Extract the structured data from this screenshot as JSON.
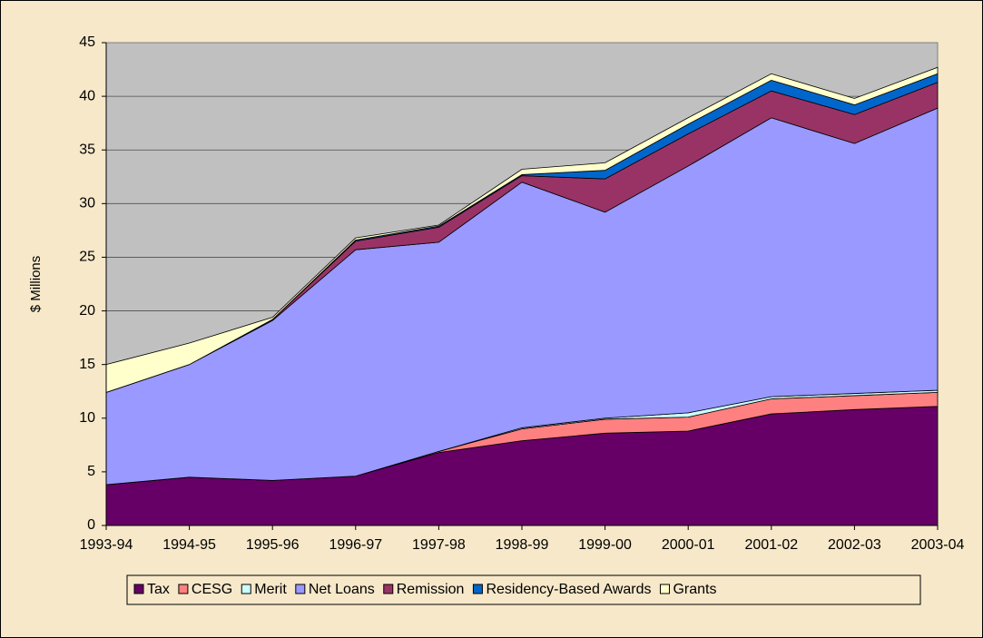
{
  "chart_data": {
    "type": "stacked_area",
    "y_label": "$ Millions",
    "categories": [
      "1993-94",
      "1994-95",
      "1995-96",
      "1996-97",
      "1997-98",
      "1998-99",
      "1999-00",
      "2000-01",
      "2001-02",
      "2002-03",
      "2003-04"
    ],
    "series": [
      {
        "name": "Tax",
        "color": "#660066",
        "values": [
          3.8,
          4.5,
          4.2,
          4.6,
          6.8,
          7.9,
          8.6,
          8.8,
          10.4,
          10.8,
          11.1
        ]
      },
      {
        "name": "CESG",
        "color": "#ff8080",
        "values": [
          0,
          0,
          0,
          0,
          0.1,
          1.1,
          1.3,
          1.3,
          1.4,
          1.3,
          1.3
        ]
      },
      {
        "name": "Merit",
        "color": "#ccffff",
        "values": [
          0,
          0,
          0,
          0,
          0,
          0.1,
          0.1,
          0.4,
          0.2,
          0.2,
          0.2
        ]
      },
      {
        "name": "Net Loans",
        "color": "#9999ff",
        "values": [
          8.6,
          10.5,
          14.9,
          21.1,
          19.5,
          22.9,
          19.2,
          23.0,
          26.0,
          23.3,
          26.3
        ]
      },
      {
        "name": "Remission",
        "color": "#993366",
        "values": [
          0,
          0,
          0.1,
          0.8,
          1.4,
          0.6,
          3.1,
          3.0,
          2.5,
          2.7,
          2.4
        ]
      },
      {
        "name": "Residency-Based Awards",
        "color": "#0066cc",
        "values": [
          0,
          0,
          0,
          0.1,
          0.1,
          0.1,
          0.8,
          0.9,
          1.0,
          0.9,
          0.8
        ]
      },
      {
        "name": "Grants",
        "color": "#ffffcc",
        "values": [
          2.6,
          2.0,
          0.2,
          0.2,
          0.1,
          0.5,
          0.7,
          0.6,
          0.6,
          0.6,
          0.6
        ]
      }
    ],
    "ylim": [
      0,
      45
    ],
    "yticks": [
      0,
      5,
      10,
      15,
      20,
      25,
      30,
      35,
      40,
      45
    ],
    "grid": true,
    "plot_background": "#c0c0c0",
    "legend": "bottom"
  }
}
